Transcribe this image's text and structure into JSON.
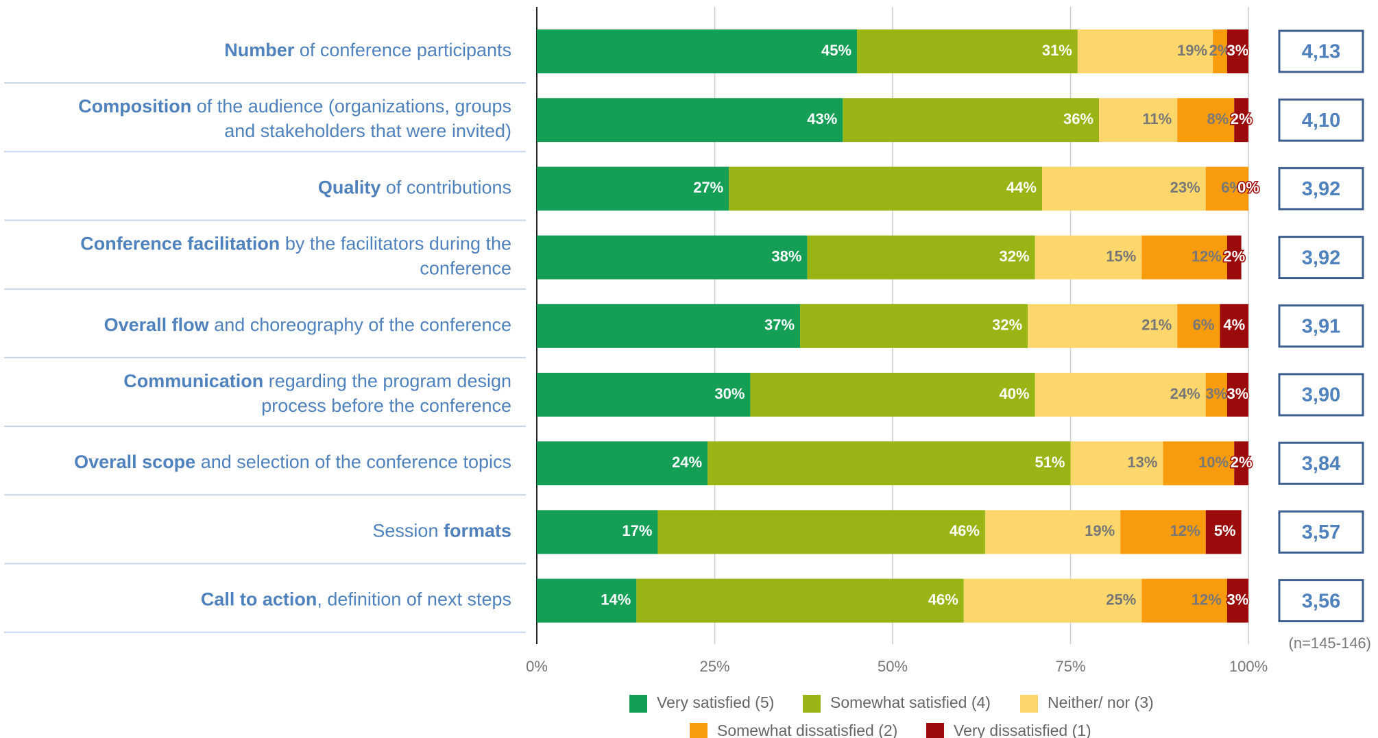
{
  "chart_data": {
    "type": "bar",
    "orientation": "horizontal",
    "stacked": true,
    "grid": true,
    "categories": [
      [
        [
          {
            "text": "Number",
            "bold": true
          },
          {
            "text": " of conference participants",
            "bold": false
          }
        ]
      ],
      [
        [
          {
            "text": "Composition",
            "bold": true
          },
          {
            "text": " of the audience (organizations, groups",
            "bold": false
          }
        ],
        [
          {
            "text": "and stakeholders that were invited)",
            "bold": false
          }
        ]
      ],
      [
        [
          {
            "text": "Quality",
            "bold": true
          },
          {
            "text": " of contributions",
            "bold": false
          }
        ]
      ],
      [
        [
          {
            "text": "Conference facilitation",
            "bold": true
          },
          {
            "text": " by the facilitators during the",
            "bold": false
          }
        ],
        [
          {
            "text": "conference",
            "bold": false
          }
        ]
      ],
      [
        [
          {
            "text": "Overall flow",
            "bold": true
          },
          {
            "text": " and choreography of the conference",
            "bold": false
          }
        ]
      ],
      [
        [
          {
            "text": "Communication",
            "bold": true
          },
          {
            "text": " regarding the program design",
            "bold": false
          }
        ],
        [
          {
            "text": "process before the conference",
            "bold": false
          }
        ]
      ],
      [
        [
          {
            "text": "Overall scope",
            "bold": true
          },
          {
            "text": " and selection of the conference topics",
            "bold": false
          }
        ]
      ],
      [
        [
          {
            "text": "Session ",
            "bold": false
          },
          {
            "text": "formats",
            "bold": true
          }
        ]
      ],
      [
        [
          {
            "text": "Call to action",
            "bold": true
          },
          {
            "text": ", definition of next steps",
            "bold": false
          }
        ]
      ]
    ],
    "series": [
      {
        "name": "Very satisfied (5)",
        "color": "#149e56",
        "values": [
          45,
          43,
          27,
          38,
          37,
          30,
          24,
          17,
          14
        ],
        "value_labels": [
          "45%",
          "43%",
          "27%",
          "38%",
          "37%",
          "30%",
          "24%",
          "17%",
          "14%"
        ]
      },
      {
        "name": "Somewhat satisfied (4)",
        "color": "#98b515",
        "values": [
          31,
          36,
          44,
          32,
          32,
          40,
          51,
          46,
          46
        ],
        "value_labels": [
          "31%",
          "36%",
          "44%",
          "32%",
          "32%",
          "40%",
          "51%",
          "46%",
          "46%"
        ]
      },
      {
        "name": "Neither/ nor (3)",
        "color": "#fdd66c",
        "values": [
          19,
          11,
          23,
          15,
          21,
          24,
          13,
          19,
          25
        ],
        "value_labels": [
          "19%",
          "11%",
          "23%",
          "15%",
          "21%",
          "24%",
          "13%",
          "19%",
          "25%"
        ]
      },
      {
        "name": "Somewhat dissatisfied (2)",
        "color": "#f89c0e",
        "values": [
          2,
          8,
          6,
          12,
          6,
          3,
          10,
          12,
          12
        ],
        "value_labels": [
          "2%",
          "8%",
          "6%",
          "12%",
          "6%",
          "3%",
          "10%",
          "12%",
          "12%"
        ]
      },
      {
        "name": "Very dissatisfied (1)",
        "color": "#9b0b0b",
        "values": [
          3,
          2,
          0,
          2,
          4,
          3,
          2,
          5,
          3
        ],
        "value_labels": [
          "3%",
          "2%",
          "0%",
          "2%",
          "4%",
          "3%",
          "2%",
          "5%",
          "3%"
        ]
      }
    ],
    "scores": [
      4.13,
      4.1,
      3.92,
      3.92,
      3.91,
      3.9,
      3.84,
      3.57,
      3.56
    ],
    "score_labels": [
      "4,13",
      "4,10",
      "3,92",
      "3,92",
      "3,91",
      "3,90",
      "3,84",
      "3,57",
      "3,56"
    ],
    "xlim": [
      0,
      100
    ],
    "xticks": [
      {
        "value": 0,
        "label": "0%"
      },
      {
        "value": 25,
        "label": "25%"
      },
      {
        "value": 50,
        "label": "50%"
      },
      {
        "value": 75,
        "label": "75%"
      },
      {
        "value": 100,
        "label": "100%"
      }
    ],
    "note": "(n=145-146)"
  }
}
